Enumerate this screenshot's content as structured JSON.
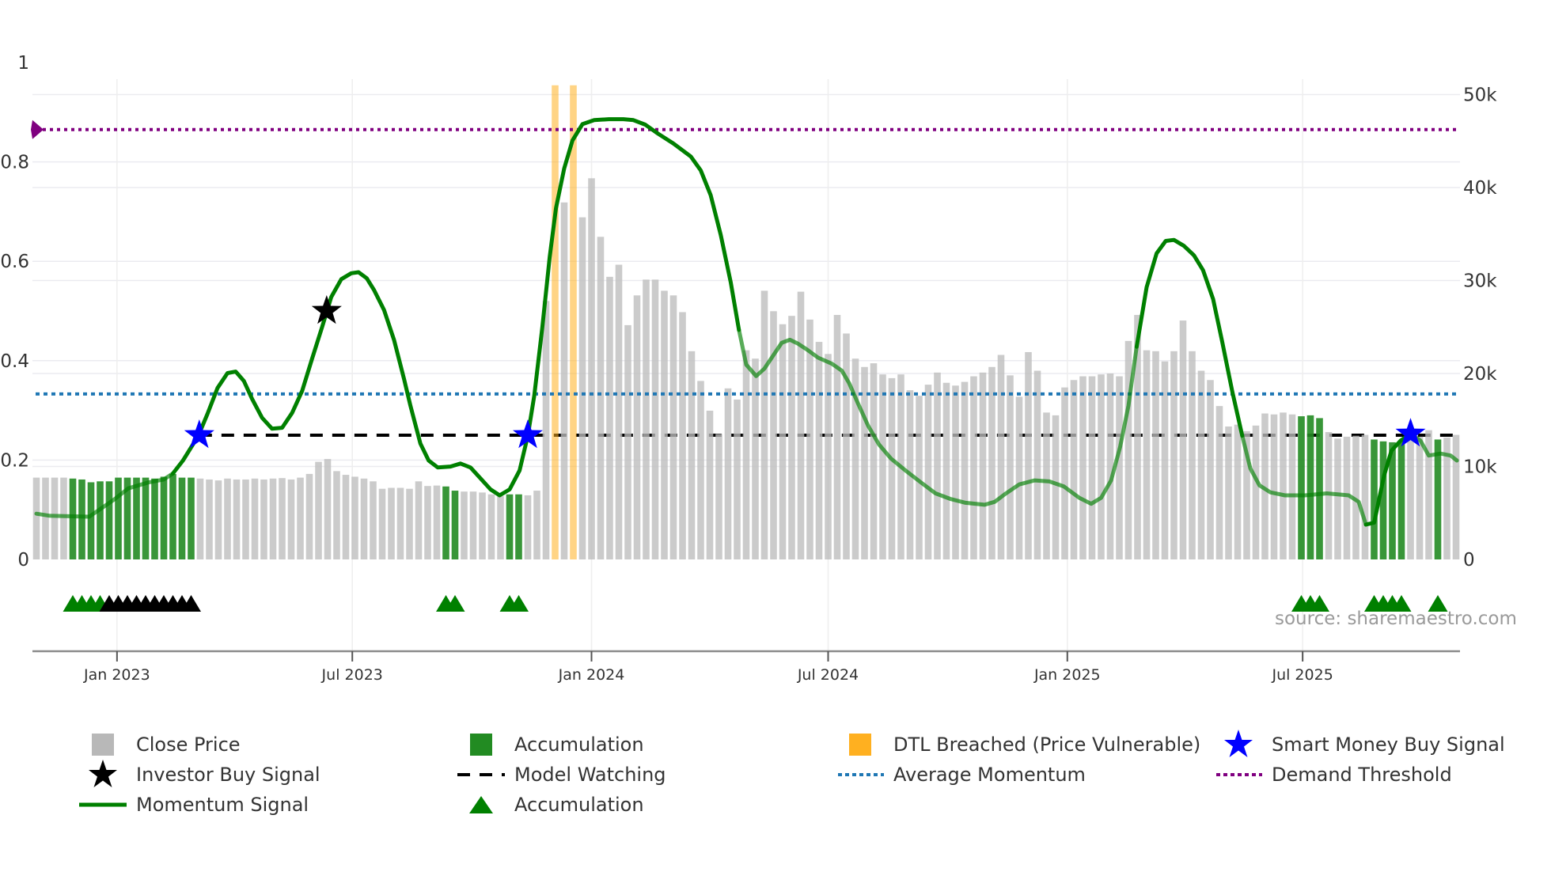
{
  "chart_data": {
    "type": "bar+line",
    "x_axis": {
      "unit": "weeks since first bar",
      "first_bar_date": "2022-10-31",
      "step_days": 7,
      "ticks": [
        {
          "date": "2023-01-01",
          "label": "Jan 2023"
        },
        {
          "date": "2023-07-01",
          "label": "Jul 2023"
        },
        {
          "date": "2024-01-01",
          "label": "Jan 2024"
        },
        {
          "date": "2024-07-01",
          "label": "Jul 2024"
        },
        {
          "date": "2025-01-01",
          "label": "Jan 2025"
        },
        {
          "date": "2025-07-01",
          "label": "Jul 2025"
        }
      ]
    },
    "left_axis": {
      "ylim": [
        0,
        1
      ],
      "ticks": [
        {
          "value": 0,
          "label": "0"
        },
        {
          "value": 0.2,
          "label": "0.2"
        },
        {
          "value": 0.4,
          "label": "0.4"
        },
        {
          "value": 0.6,
          "label": "0.6"
        },
        {
          "value": 0.8,
          "label": "0.8"
        },
        {
          "value": 1,
          "label": "1"
        }
      ]
    },
    "right_axis": {
      "unit": "thousands",
      "ylim": [
        0,
        53.45
      ],
      "ticks": [
        {
          "value": 0,
          "label": "0"
        },
        {
          "value": 10,
          "label": "10k"
        },
        {
          "value": 20,
          "label": "20k"
        },
        {
          "value": 30,
          "label": "30k"
        },
        {
          "value": 40,
          "label": "40k"
        },
        {
          "value": 50,
          "label": "50k"
        }
      ]
    },
    "close_price_k": [
      8.8,
      8.8,
      8.8,
      8.8,
      8.7,
      8.6,
      8.3,
      8.4,
      8.4,
      8.8,
      8.8,
      8.8,
      8.8,
      8.7,
      8.9,
      9.2,
      8.8,
      8.8,
      8.7,
      8.6,
      8.5,
      8.7,
      8.6,
      8.6,
      8.7,
      8.6,
      8.7,
      8.75,
      8.6,
      8.8,
      9.2,
      10.5,
      10.8,
      9.5,
      9.1,
      8.9,
      8.7,
      8.4,
      7.6,
      7.7,
      7.7,
      7.6,
      8.4,
      7.9,
      7.95,
      7.85,
      7.4,
      7.3,
      7.3,
      7.2,
      7.0,
      6.8,
      7.0,
      7.0,
      6.9,
      7.4,
      27.8,
      null,
      38.4,
      null,
      36.8,
      41.0,
      34.7,
      30.4,
      31.7,
      25.2,
      28.4,
      30.1,
      30.1,
      28.9,
      28.4,
      26.6,
      22.4,
      19.2,
      16.0,
      13.5,
      18.4,
      17.2,
      22.5,
      21.6,
      28.9,
      26.7,
      25.3,
      26.2,
      28.8,
      25.8,
      23.4,
      22.1,
      26.3,
      24.3,
      21.6,
      20.7,
      21.1,
      19.9,
      19.5,
      19.9,
      18.2,
      17.6,
      18.8,
      20.1,
      19.0,
      18.7,
      19.1,
      19.7,
      20.1,
      20.7,
      22.0,
      19.8,
      17.5,
      22.3,
      20.3,
      15.8,
      15.5,
      18.5,
      19.3,
      19.7,
      19.7,
      19.9,
      20.0,
      19.7,
      23.5,
      26.3,
      22.5,
      22.4,
      21.3,
      22.4,
      25.7,
      22.4,
      20.3,
      19.3,
      16.5,
      14.3,
      14.5,
      13.8,
      14.4,
      15.7,
      15.6,
      15.8,
      15.6,
      15.4,
      15.5,
      15.2,
      13.7,
      13.0,
      13.2,
      13.3,
      13.4,
      12.9,
      12.7,
      12.6,
      12.8,
      13.2,
      13.2,
      13.9,
      12.9,
      13.1,
      13.4
    ],
    "accumulation_weeks": [
      4,
      5,
      6,
      7,
      8,
      9,
      10,
      11,
      12,
      13,
      14,
      15,
      16,
      17,
      45,
      46,
      52,
      53,
      139,
      140,
      141,
      147,
      148,
      149,
      150,
      154
    ],
    "dtl_breached": {
      "weeks": [
        57,
        59
      ],
      "value_k": 51
    },
    "momentum_signal": [
      [
        0,
        0.092
      ],
      [
        1.4,
        0.088
      ],
      [
        5.8,
        0.086
      ],
      [
        8.5,
        0.12
      ],
      [
        10.1,
        0.143
      ],
      [
        12.3,
        0.155
      ],
      [
        14,
        0.161
      ],
      [
        15,
        0.173
      ],
      [
        16.1,
        0.199
      ],
      [
        17.8,
        0.249
      ],
      [
        18.8,
        0.293
      ],
      [
        19.9,
        0.345
      ],
      [
        21,
        0.375
      ],
      [
        21.9,
        0.378
      ],
      [
        22.8,
        0.359
      ],
      [
        23.7,
        0.323
      ],
      [
        24.8,
        0.285
      ],
      [
        25.9,
        0.263
      ],
      [
        27,
        0.265
      ],
      [
        28.1,
        0.295
      ],
      [
        29.2,
        0.339
      ],
      [
        30.3,
        0.404
      ],
      [
        31.4,
        0.468
      ],
      [
        32.4,
        0.528
      ],
      [
        33.5,
        0.564
      ],
      [
        34.6,
        0.576
      ],
      [
        35.4,
        0.578
      ],
      [
        36.3,
        0.566
      ],
      [
        37.1,
        0.542
      ],
      [
        38.2,
        0.502
      ],
      [
        39.3,
        0.442
      ],
      [
        40.4,
        0.363
      ],
      [
        41.1,
        0.309
      ],
      [
        42.2,
        0.233
      ],
      [
        43.1,
        0.199
      ],
      [
        44.1,
        0.185
      ],
      [
        45.5,
        0.187
      ],
      [
        46.6,
        0.193
      ],
      [
        47.7,
        0.185
      ],
      [
        48.8,
        0.163
      ],
      [
        49.9,
        0.141
      ],
      [
        50.9,
        0.129
      ],
      [
        52,
        0.141
      ],
      [
        53.1,
        0.179
      ],
      [
        54,
        0.249
      ],
      [
        54.7,
        0.329
      ],
      [
        55.6,
        0.468
      ],
      [
        56.4,
        0.608
      ],
      [
        57.1,
        0.707
      ],
      [
        58,
        0.787
      ],
      [
        58.9,
        0.843
      ],
      [
        60,
        0.876
      ],
      [
        61.3,
        0.884
      ],
      [
        62.9,
        0.886
      ],
      [
        64.5,
        0.886
      ],
      [
        65.6,
        0.884
      ],
      [
        66.9,
        0.875
      ],
      [
        68.3,
        0.857
      ],
      [
        70,
        0.837
      ],
      [
        71.9,
        0.811
      ],
      [
        73,
        0.783
      ],
      [
        74.1,
        0.733
      ],
      [
        75.2,
        0.653
      ],
      [
        76.3,
        0.558
      ],
      [
        77.2,
        0.462
      ],
      [
        78,
        0.392
      ],
      [
        79.1,
        0.369
      ],
      [
        80,
        0.384
      ],
      [
        81.1,
        0.414
      ],
      [
        81.9,
        0.436
      ],
      [
        82.8,
        0.442
      ],
      [
        83.7,
        0.434
      ],
      [
        84.7,
        0.422
      ],
      [
        85.9,
        0.406
      ],
      [
        87.4,
        0.394
      ],
      [
        88.5,
        0.38
      ],
      [
        89.3,
        0.355
      ],
      [
        90.3,
        0.313
      ],
      [
        91.4,
        0.269
      ],
      [
        92.6,
        0.231
      ],
      [
        93.9,
        0.203
      ],
      [
        95.5,
        0.179
      ],
      [
        97.2,
        0.155
      ],
      [
        98.8,
        0.133
      ],
      [
        100.4,
        0.122
      ],
      [
        102.1,
        0.114
      ],
      [
        104.2,
        0.11
      ],
      [
        105.3,
        0.116
      ],
      [
        106.4,
        0.131
      ],
      [
        108,
        0.151
      ],
      [
        109.7,
        0.159
      ],
      [
        111.3,
        0.157
      ],
      [
        112.9,
        0.147
      ],
      [
        114.6,
        0.124
      ],
      [
        115.9,
        0.112
      ],
      [
        117,
        0.124
      ],
      [
        118.1,
        0.159
      ],
      [
        119.1,
        0.227
      ],
      [
        120,
        0.309
      ],
      [
        120.9,
        0.428
      ],
      [
        122,
        0.548
      ],
      [
        123.1,
        0.616
      ],
      [
        124.1,
        0.641
      ],
      [
        125,
        0.643
      ],
      [
        126.1,
        0.631
      ],
      [
        127.2,
        0.612
      ],
      [
        128.2,
        0.582
      ],
      [
        129.3,
        0.524
      ],
      [
        130.3,
        0.438
      ],
      [
        131.4,
        0.339
      ],
      [
        132.5,
        0.249
      ],
      [
        133.4,
        0.183
      ],
      [
        134.4,
        0.149
      ],
      [
        135.6,
        0.135
      ],
      [
        137.2,
        0.129
      ],
      [
        139.4,
        0.129
      ],
      [
        141.8,
        0.133
      ],
      [
        144.2,
        0.129
      ],
      [
        145.3,
        0.116
      ],
      [
        146.1,
        0.07
      ],
      [
        147,
        0.074
      ],
      [
        148.1,
        0.169
      ],
      [
        148.9,
        0.219
      ],
      [
        149.9,
        0.239
      ],
      [
        151,
        0.253
      ],
      [
        152.1,
        0.239
      ],
      [
        153,
        0.209
      ],
      [
        154.3,
        0.213
      ],
      [
        155.4,
        0.209
      ],
      [
        156.1,
        0.199
      ]
    ],
    "momentum_weak_ranges": [
      [
        0,
        15
      ],
      [
        77.5,
        121
      ],
      [
        132,
        146.5
      ],
      [
        151,
        157
      ]
    ],
    "smart_money_buy_signals": [
      [
        17.9,
        0.25
      ],
      [
        54,
        0.25
      ],
      [
        151,
        0.253
      ]
    ],
    "investor_buy_signals": [
      [
        31.9,
        0.5
      ]
    ],
    "model_watching": {
      "value": 0.25,
      "from_week": 17.9
    },
    "average_momentum": 0.333,
    "demand_threshold": 0.865,
    "accumulation_markers": [
      {
        "week": 4,
        "kind": "accumulation"
      },
      {
        "week": 5,
        "kind": "accumulation"
      },
      {
        "week": 6,
        "kind": "accumulation"
      },
      {
        "week": 7,
        "kind": "accumulation"
      },
      {
        "week": 8,
        "kind": "investor"
      },
      {
        "week": 9,
        "kind": "investor"
      },
      {
        "week": 10,
        "kind": "investor"
      },
      {
        "week": 11,
        "kind": "investor"
      },
      {
        "week": 12,
        "kind": "investor"
      },
      {
        "week": 13,
        "kind": "investor"
      },
      {
        "week": 14,
        "kind": "investor"
      },
      {
        "week": 15,
        "kind": "investor"
      },
      {
        "week": 16,
        "kind": "investor"
      },
      {
        "week": 17,
        "kind": "investor"
      },
      {
        "week": 45,
        "kind": "accumulation"
      },
      {
        "week": 46,
        "kind": "accumulation"
      },
      {
        "week": 52,
        "kind": "accumulation"
      },
      {
        "week": 53,
        "kind": "accumulation"
      },
      {
        "week": 139,
        "kind": "accumulation"
      },
      {
        "week": 140,
        "kind": "accumulation"
      },
      {
        "week": 141,
        "kind": "accumulation"
      },
      {
        "week": 147,
        "kind": "accumulation"
      },
      {
        "week": 148,
        "kind": "accumulation"
      },
      {
        "week": 149,
        "kind": "accumulation"
      },
      {
        "week": 150,
        "kind": "accumulation"
      },
      {
        "week": 154,
        "kind": "accumulation"
      }
    ],
    "legend": {
      "close_price": "Close Price",
      "accumulation_bar": "Accumulation",
      "dtl_breached": "DTL Breached (Price Vulnerable)",
      "smart_money": "Smart Money Buy Signal",
      "investor_buy": "Investor Buy Signal",
      "model_watching": "Model Watching",
      "average_momentum": "Average Momentum",
      "demand_threshold": "Demand Threshold",
      "momentum_signal": "Momentum Signal",
      "accumulation_marker": "Accumulation"
    },
    "source": "source: sharemaestro.com",
    "colors": {
      "close_price": "#bdbdbd",
      "accumulation": "#228B22",
      "dtl": "#FFB020",
      "momentum": "#008000",
      "smart_money": "#0000FF",
      "investor": "#000000",
      "average_momentum": "#1f77b4",
      "demand_threshold": "#800080"
    }
  }
}
